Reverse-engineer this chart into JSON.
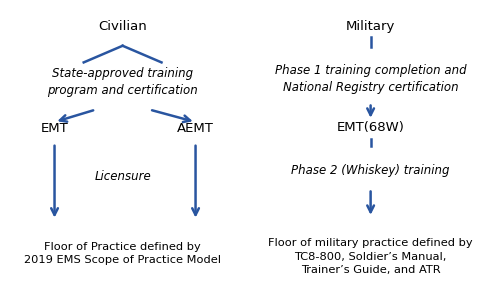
{
  "bg_color": "#ffffff",
  "arrow_color": "#2955a0",
  "text_color": "#000000",
  "font_size_title": 9.5,
  "font_size_italic": 8.5,
  "font_size_floor": 8.2,
  "left_side": {
    "civilian_label": "Civilian",
    "italic_label": "State-approved training\nprogram and certification",
    "emt_label": "EMT",
    "aemt_label": "AEMT",
    "licensure_label": "Licensure",
    "floor_label": "Floor of Practice defined by\n2019 EMS Scope of Practice Model"
  },
  "right_side": {
    "military_label": "Military",
    "italic_label": "Phase 1 training completion and\nNational Registry certification",
    "emt68w_label": "EMT(68W)",
    "phase2_label": "Phase 2 (Whiskey) training",
    "floor_label": "Floor of military practice defined by\nTC8-800, Soldier’s Manual,\nTrainer’s Guide, and ATR"
  }
}
